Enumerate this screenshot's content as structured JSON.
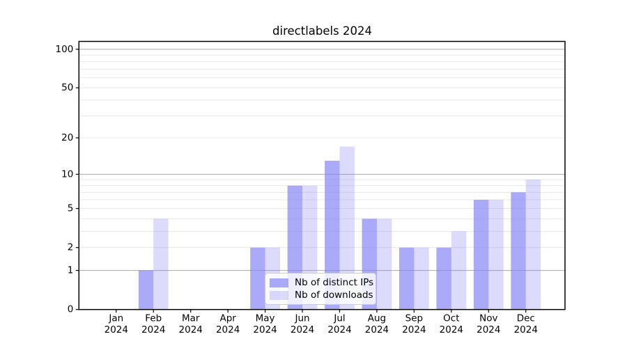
{
  "chart_data": {
    "type": "bar",
    "title": "directlabels 2024",
    "categories": [
      "Jan",
      "Feb",
      "Mar",
      "Apr",
      "May",
      "Jun",
      "Jul",
      "Aug",
      "Sep",
      "Oct",
      "Nov",
      "Dec"
    ],
    "x_year_label": "2024",
    "series": [
      {
        "name": "Nb of distinct IPs",
        "values": [
          0,
          1,
          0,
          0,
          2,
          8,
          13,
          4,
          2,
          2,
          6,
          7
        ],
        "color": "rgba(128,126,245,0.66)"
      },
      {
        "name": "Nb of downloads",
        "values": [
          0,
          4,
          0,
          0,
          2,
          8,
          17,
          4,
          2,
          3,
          6,
          9
        ],
        "color": "rgba(128,126,245,0.28)"
      }
    ],
    "y_axis": {
      "scale": "log1p",
      "ticks": [
        0,
        1,
        2,
        5,
        10,
        20,
        50,
        100
      ],
      "major_gridlines": [
        1,
        10,
        100
      ],
      "minor_gridlines": [
        2,
        3,
        4,
        5,
        6,
        7,
        8,
        9,
        20,
        30,
        40,
        50,
        60,
        70,
        80,
        90
      ],
      "range": [
        0,
        116
      ]
    },
    "legend": {
      "position": "lower center"
    },
    "colors": {
      "grid_major": "#b2b2b2",
      "grid_minor": "#e8e8e8",
      "spine": "#000000",
      "text": "#000000",
      "legend_border": "#cccccc"
    }
  }
}
